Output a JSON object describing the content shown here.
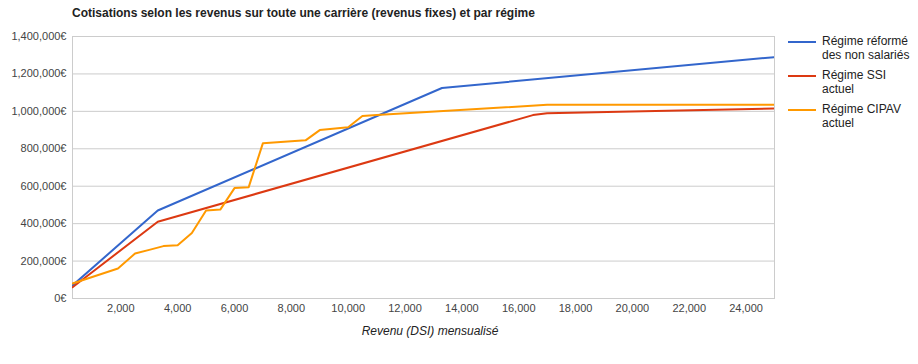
{
  "chart_data": {
    "type": "line",
    "title": "Cotisations selon les revenus sur toute une carrière (revenus fixes) et par régime",
    "x_label": "Revenu (DSI) mensualisé",
    "xlim": [
      300,
      25000
    ],
    "xticks": [
      {
        "value": 2000,
        "label": "2,000"
      },
      {
        "value": 4000,
        "label": "4,000"
      },
      {
        "value": 6000,
        "label": "6,000"
      },
      {
        "value": 8000,
        "label": "8,000"
      },
      {
        "value": 10000,
        "label": "10,000"
      },
      {
        "value": 12000,
        "label": "12,000"
      },
      {
        "value": 14000,
        "label": "14,000"
      },
      {
        "value": 16000,
        "label": "16,000"
      },
      {
        "value": 18000,
        "label": "18,000"
      },
      {
        "value": 20000,
        "label": "20,000"
      },
      {
        "value": 22000,
        "label": "22,000"
      },
      {
        "value": 24000,
        "label": "24,000"
      }
    ],
    "ylim": [
      0,
      1400000
    ],
    "yticks": [
      {
        "value": 0,
        "label": "0€"
      },
      {
        "value": 200000,
        "label": "200,000€"
      },
      {
        "value": 400000,
        "label": "400,000€"
      },
      {
        "value": 600000,
        "label": "600,000€"
      },
      {
        "value": 800000,
        "label": "800,000€"
      },
      {
        "value": 1000000,
        "label": "1,000,000€"
      },
      {
        "value": 1200000,
        "label": "1,200,000€"
      },
      {
        "value": 1400000,
        "label": "1,400,000€"
      }
    ],
    "grid": true,
    "legend": "right",
    "series": [
      {
        "name": "Régime réformé des non salariés",
        "color": "#3366cc",
        "x": [
          300,
          3300,
          13300,
          25000
        ],
        "values": [
          70000,
          470000,
          1125000,
          1290000
        ]
      },
      {
        "name": "Régime SSI actuel",
        "color": "#dc3912",
        "x": [
          300,
          3300,
          16500,
          17000,
          25000
        ],
        "values": [
          60000,
          410000,
          980000,
          990000,
          1015000
        ]
      },
      {
        "name": "Régime CIPAV actuel",
        "color": "#ff9900",
        "x": [
          300,
          1900,
          2500,
          3000,
          3500,
          4000,
          4500,
          5000,
          5500,
          6000,
          6500,
          7000,
          8500,
          9000,
          10000,
          10500,
          11000,
          17000,
          25000
        ],
        "values": [
          80000,
          160000,
          240000,
          260000,
          280000,
          285000,
          350000,
          470000,
          475000,
          590000,
          595000,
          830000,
          845000,
          900000,
          915000,
          975000,
          980000,
          1035000,
          1035000
        ]
      }
    ]
  }
}
